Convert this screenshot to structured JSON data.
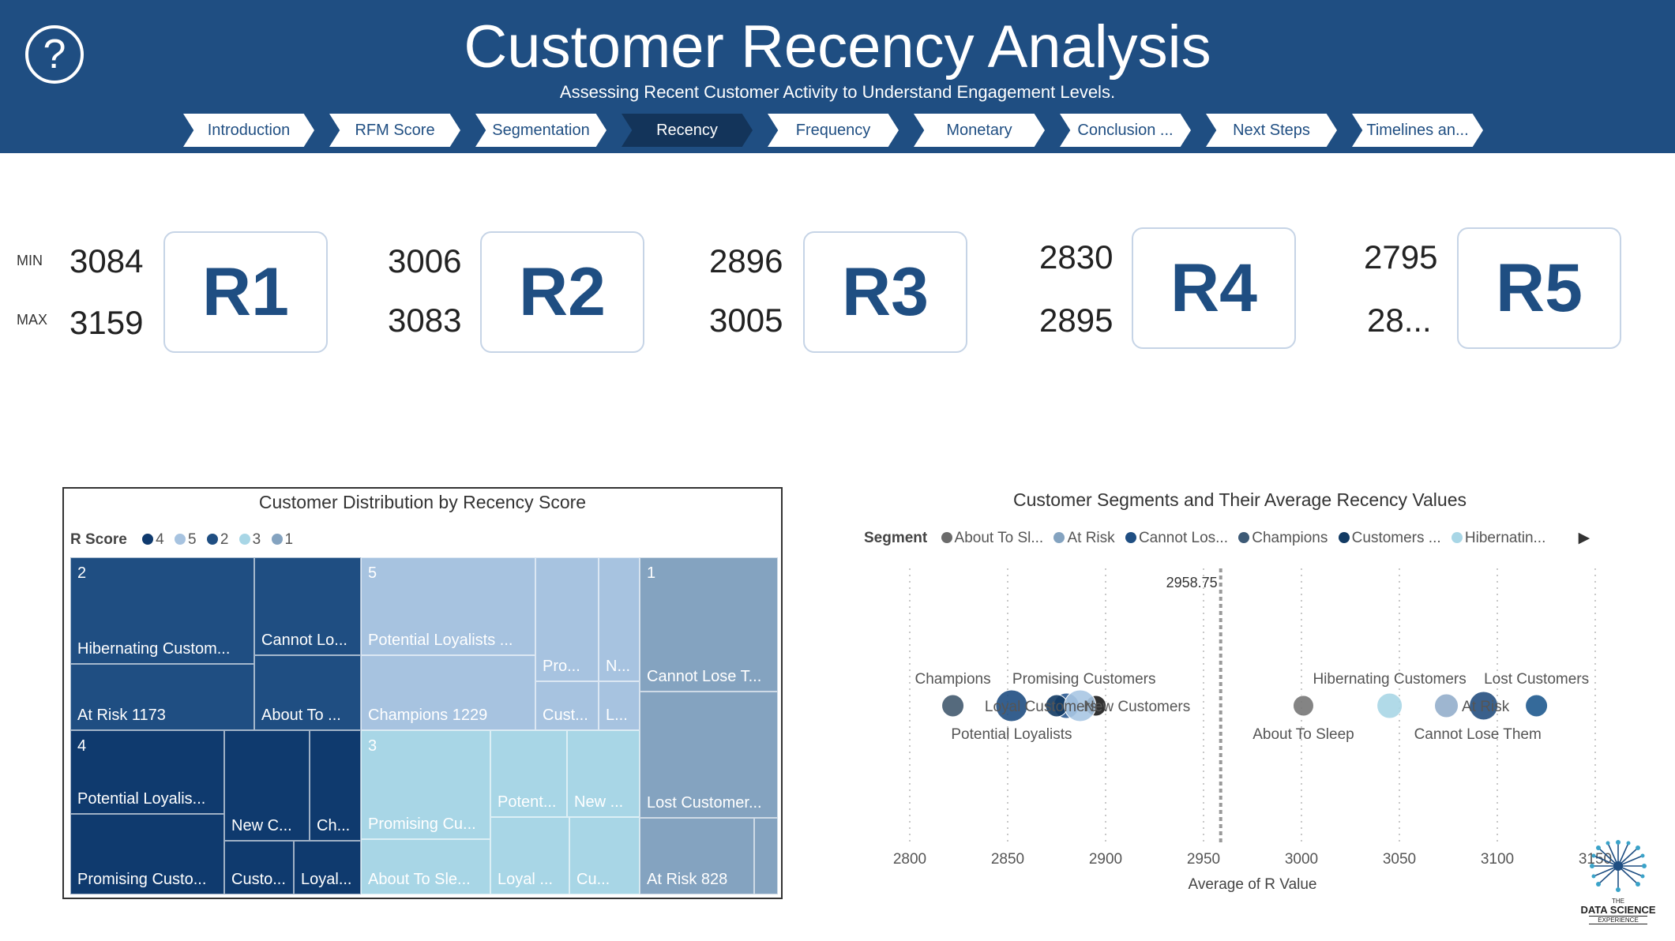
{
  "header": {
    "help_icon": "?",
    "title": "Customer Recency Analysis",
    "subtitle": "Assessing Recent Customer Activity to Understand Engagement Levels.",
    "tabs": [
      "Introduction",
      "RFM Score",
      "Segmentation",
      "Recency",
      "Frequency",
      "Monetary",
      "Conclusion ...",
      "Next Steps",
      "Timelines an..."
    ],
    "active_tab": "Recency"
  },
  "score_ranges": {
    "min_label": "MIN",
    "max_label": "MAX",
    "items": [
      {
        "label": "R1",
        "min": "3084",
        "max": "3159"
      },
      {
        "label": "R2",
        "min": "3006",
        "max": "3083"
      },
      {
        "label": "R3",
        "min": "2896",
        "max": "3005"
      },
      {
        "label": "R4",
        "min": "2830",
        "max": "2895"
      },
      {
        "label": "R5",
        "min": "2795",
        "max": "28..."
      }
    ]
  },
  "treemap": {
    "title": "Customer Distribution by Recency Score",
    "legend_title": "R Score",
    "legend": [
      {
        "label": "4",
        "color": "#0f3a6e"
      },
      {
        "label": "5",
        "color": "#a7c3e0"
      },
      {
        "label": "2",
        "color": "#1f4e82"
      },
      {
        "label": "3",
        "color": "#a8d6e6"
      },
      {
        "label": "1",
        "color": "#84a3c0"
      }
    ],
    "groups": {
      "g2": "2",
      "g5": "5",
      "g1": "1",
      "g4": "4",
      "g3": "3"
    },
    "cells": {
      "c2a": "Hibernating Custom...",
      "c2b": "At Risk 1173",
      "c2c": "Cannot Lo...",
      "c2d": "About To ...",
      "c5a": "Potential Loyalists ...",
      "c5b": "Champions 1229",
      "c5c": "Pro...",
      "c5d": "Cust...",
      "c5e": "N...",
      "c5f": "L...",
      "c1a": "Cannot Lose T...",
      "c1b": "Lost Customer...",
      "c1c": "At Risk 828",
      "c4a": "Potential Loyalis...",
      "c4b": "Promising Custo...",
      "c4c": "New C...",
      "c4d": "Ch...",
      "c4e": "Custo...",
      "c4f": "Loyal...",
      "c3a": "Promising Cu...",
      "c3b": "About To Sle...",
      "c3c": "Potent...",
      "c3d": "New ...",
      "c3e": "Loyal ...",
      "c3f": "Cu..."
    }
  },
  "chart_data": {
    "type": "scatter",
    "title": "Customer Segments and Their Average Recency Values",
    "xlabel": "Average of R Value",
    "ylabel": "",
    "xlim": [
      2800,
      3150
    ],
    "x_ticks": [
      "2800",
      "2850",
      "2900",
      "2950",
      "3000",
      "3050",
      "3100",
      "3150"
    ],
    "legend_title": "Segment",
    "legend": [
      "About To Sl...",
      "At Risk",
      "Cannot Los...",
      "Champions",
      "Customers ...",
      "Hibernatin..."
    ],
    "reference_line": {
      "x": 2958.75,
      "label": "2958.75"
    },
    "points": [
      {
        "name": "Champions",
        "x": 2822,
        "color": "#435a6f",
        "size": 14
      },
      {
        "name": "Potential Loyalists",
        "x": 2852,
        "color": "#1f4e82",
        "size": 20
      },
      {
        "name": "Loyal Customers",
        "x": 2880,
        "color": "#2b5a91",
        "size": 16
      },
      {
        "name": "Promising Customers",
        "x": 2875,
        "color": "#123a63",
        "size": 14
      },
      {
        "name": "New Customers",
        "x": 2895,
        "color": "#1b1b1b",
        "size": 13
      },
      {
        "name": "",
        "x": 2887,
        "color": "#a9c6e3",
        "size": 20
      },
      {
        "name": "About To Sleep",
        "x": 3001,
        "color": "#777777",
        "size": 13
      },
      {
        "name": "Hibernating Customers",
        "x": 3045,
        "color": "#a8d6e6",
        "size": 16
      },
      {
        "name": "Cannot Lose Them",
        "x": 3074,
        "color": "#93aecb",
        "size": 15
      },
      {
        "name": "At Risk",
        "x": 3093,
        "color": "#254f80",
        "size": 18
      },
      {
        "name": "Lost Customers",
        "x": 3120,
        "color": "#1f5a8f",
        "size": 14
      }
    ],
    "labels": [
      {
        "text": "Champions",
        "x": 2822,
        "pos": "above"
      },
      {
        "text": "Promising Customers",
        "x": 2889,
        "pos": "above"
      },
      {
        "text": "Potential Loyalists",
        "x": 2852,
        "pos": "below"
      },
      {
        "text": "Loyal Customers",
        "x": 2867,
        "pos": "center"
      },
      {
        "text": "New Customers",
        "x": 2916,
        "pos": "center"
      },
      {
        "text": "Hibernating Customers",
        "x": 3045,
        "pos": "above"
      },
      {
        "text": "Lost Customers",
        "x": 3120,
        "pos": "above"
      },
      {
        "text": "About To Sleep",
        "x": 3001,
        "pos": "below"
      },
      {
        "text": "Cannot Lose Them",
        "x": 3090,
        "pos": "below"
      },
      {
        "text": "At Risk",
        "x": 3094,
        "pos": "center"
      }
    ]
  },
  "logo": {
    "line1": "THE",
    "line2": "DATA SCIENCE",
    "line3": "EXPERIENCE"
  }
}
